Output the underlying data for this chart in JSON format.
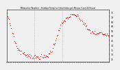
{
  "title": "Milwaukee Weather - Outdoor Temp (vs) Heat Index per Minute (Last 24 Hours)",
  "bg_color": "#f0f0f0",
  "plot_bg_color": "#f0f0f0",
  "line_color": "#dd0000",
  "grid_color": "#999999",
  "ylim": [
    22,
    78
  ],
  "yticks": [
    25,
    30,
    35,
    40,
    45,
    50,
    55,
    60,
    65,
    70,
    75
  ],
  "vline_positions": [
    0.27,
    0.27
  ],
  "noise_seed": 7,
  "noise_scale": 1.2,
  "y_values": [
    72,
    71,
    69,
    67,
    64,
    61,
    58,
    55,
    51,
    48,
    45,
    43,
    41,
    39,
    37,
    36,
    35,
    34,
    33,
    32,
    32,
    31,
    31,
    30,
    30,
    30,
    30,
    30,
    29,
    29,
    29,
    29,
    28,
    28,
    28,
    28,
    27,
    27,
    27,
    27,
    27,
    27,
    27,
    27,
    27,
    27,
    27,
    27,
    27,
    27,
    27,
    27,
    27,
    28,
    28,
    28,
    29,
    30,
    31,
    32,
    33,
    35,
    37,
    39,
    41,
    43,
    46,
    48,
    50,
    52,
    54,
    56,
    58,
    60,
    62,
    63,
    64,
    65,
    66,
    67,
    68,
    68,
    69,
    69,
    70,
    70,
    71,
    71,
    71,
    72,
    72,
    72,
    72,
    72,
    71,
    71,
    70,
    70,
    69,
    68,
    67,
    66,
    65,
    64,
    63,
    62,
    61,
    60,
    59,
    58,
    57,
    56,
    55,
    55,
    54,
    54,
    54,
    53,
    53,
    53,
    52,
    52,
    52,
    52,
    52,
    52,
    53,
    53,
    52,
    52,
    52,
    52,
    52,
    52,
    52,
    52,
    52,
    52,
    52,
    52
  ]
}
